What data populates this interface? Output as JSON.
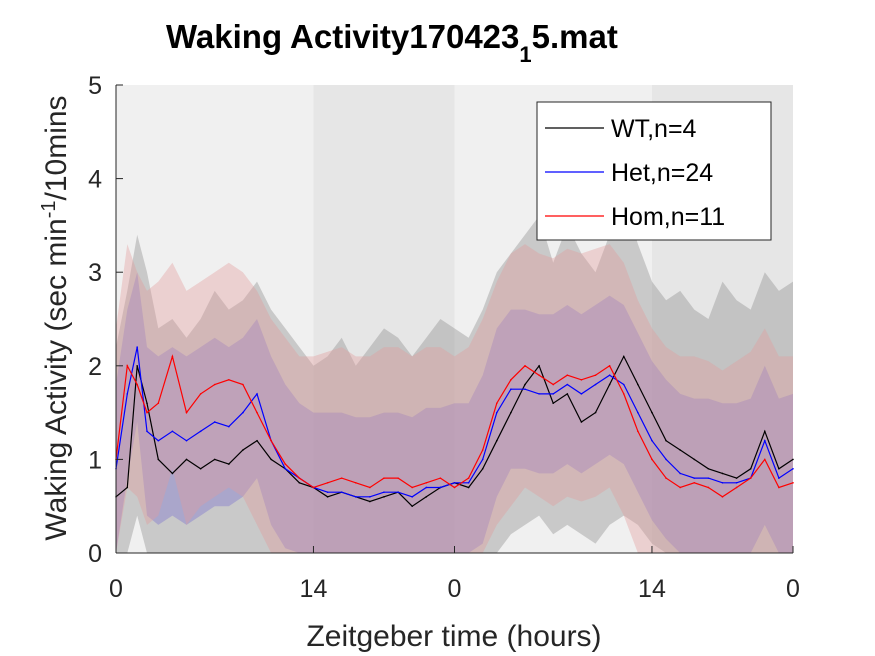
{
  "chart_data": {
    "type": "line",
    "title_main": "Waking Activity170423",
    "title_subscript": "1",
    "title_end": "5.mat",
    "xlabel": "Zeitgeber time (hours)",
    "ylabel_part1": "Waking Activity (sec min",
    "ylabel_sup": "-1",
    "ylabel_part2": "/10mins",
    "x_range": [
      0,
      48
    ],
    "ylim": [
      0,
      5
    ],
    "x_tick_positions": [
      0,
      14,
      24,
      38,
      48
    ],
    "x_tick_labels": [
      "0",
      "14",
      "0",
      "14",
      "0"
    ],
    "y_ticks": [
      0,
      1,
      2,
      3,
      4,
      5
    ],
    "y_tick_labels": [
      "0",
      "1",
      "2",
      "3",
      "4",
      "5"
    ],
    "shading_regions": [
      {
        "from": 0,
        "to": 14,
        "phase": "light",
        "color": "#f0f0f0"
      },
      {
        "from": 14,
        "to": 24,
        "phase": "dark",
        "color": "#e6e6e6"
      },
      {
        "from": 24,
        "to": 38,
        "phase": "light",
        "color": "#f0f0f0"
      },
      {
        "from": 38,
        "to": 48,
        "phase": "dark",
        "color": "#e6e6e6"
      }
    ],
    "legend_position": "top-right",
    "series": [
      {
        "name": "WT,n=4",
        "color": "#000000",
        "band_color": "#9a9a9a",
        "x": [
          0,
          0.8,
          1.5,
          2.2,
          3,
          4,
          5,
          6,
          7,
          8,
          9,
          10,
          11,
          12,
          13,
          14,
          15,
          16,
          17,
          18,
          19,
          20,
          21,
          22,
          23,
          24,
          25,
          26,
          27,
          28,
          29,
          30,
          31,
          32,
          33,
          34,
          35,
          36,
          37,
          38,
          39,
          40,
          41,
          42,
          43,
          44,
          45,
          46,
          47,
          48
        ],
        "values": [
          0.6,
          0.7,
          2.0,
          1.6,
          1.0,
          0.85,
          1.0,
          0.9,
          1.0,
          0.95,
          1.1,
          1.2,
          1.0,
          0.9,
          0.75,
          0.7,
          0.6,
          0.65,
          0.6,
          0.55,
          0.6,
          0.65,
          0.5,
          0.6,
          0.7,
          0.75,
          0.7,
          0.9,
          1.2,
          1.5,
          1.8,
          2.0,
          1.6,
          1.7,
          1.4,
          1.5,
          1.8,
          2.1,
          1.8,
          1.5,
          1.2,
          1.1,
          1.0,
          0.9,
          0.85,
          0.8,
          0.9,
          1.3,
          0.9,
          1.0
        ],
        "band_upper": [
          2.2,
          2.8,
          3.4,
          3.0,
          2.4,
          2.5,
          2.3,
          2.5,
          2.8,
          2.6,
          2.7,
          2.9,
          2.6,
          2.4,
          2.2,
          2.0,
          2.1,
          2.3,
          2.0,
          2.2,
          2.4,
          2.3,
          2.1,
          2.3,
          2.5,
          2.4,
          2.3,
          2.6,
          3.0,
          3.2,
          3.4,
          3.6,
          3.1,
          3.5,
          3.2,
          3.0,
          3.4,
          3.8,
          3.3,
          2.9,
          2.7,
          2.8,
          2.6,
          2.5,
          2.9,
          2.7,
          2.6,
          3.0,
          2.8,
          2.9
        ],
        "band_lower": [
          0,
          0,
          0.4,
          0,
          0,
          0,
          0,
          0,
          0,
          0,
          0,
          0,
          0,
          0,
          0,
          0,
          0,
          0,
          0,
          0,
          0,
          0,
          0,
          0,
          0,
          0,
          0,
          0,
          0,
          0.2,
          0.3,
          0.4,
          0.2,
          0.3,
          0.2,
          0.1,
          0.3,
          0.4,
          0.3,
          0.1,
          0,
          0,
          0,
          0,
          0,
          0,
          0,
          0,
          0,
          0
        ]
      },
      {
        "name": "Het,n=24",
        "color": "#0000ff",
        "band_color": "#7a6fd0",
        "x": [
          0,
          0.8,
          1.5,
          2.2,
          3,
          4,
          5,
          6,
          7,
          8,
          9,
          10,
          11,
          12,
          13,
          14,
          15,
          16,
          17,
          18,
          19,
          20,
          21,
          22,
          23,
          24,
          25,
          26,
          27,
          28,
          29,
          30,
          31,
          32,
          33,
          34,
          35,
          36,
          37,
          38,
          39,
          40,
          41,
          42,
          43,
          44,
          45,
          46,
          47,
          48
        ],
        "values": [
          0.9,
          1.7,
          2.2,
          1.3,
          1.2,
          1.3,
          1.2,
          1.3,
          1.4,
          1.35,
          1.5,
          1.7,
          1.2,
          0.9,
          0.8,
          0.7,
          0.65,
          0.65,
          0.6,
          0.6,
          0.65,
          0.65,
          0.6,
          0.7,
          0.7,
          0.75,
          0.75,
          1.0,
          1.5,
          1.75,
          1.75,
          1.7,
          1.7,
          1.8,
          1.7,
          1.8,
          1.9,
          1.8,
          1.5,
          1.2,
          1.0,
          0.85,
          0.8,
          0.8,
          0.75,
          0.75,
          0.8,
          1.2,
          0.8,
          0.9
        ],
        "band_upper": [
          1.8,
          2.6,
          3.0,
          2.2,
          2.1,
          2.2,
          2.1,
          2.2,
          2.3,
          2.2,
          2.3,
          2.5,
          2.1,
          1.8,
          1.6,
          1.5,
          1.5,
          1.5,
          1.45,
          1.45,
          1.5,
          1.5,
          1.45,
          1.55,
          1.55,
          1.6,
          1.6,
          1.9,
          2.4,
          2.6,
          2.6,
          2.55,
          2.55,
          2.65,
          2.55,
          2.65,
          2.75,
          2.65,
          2.35,
          2.05,
          1.85,
          1.7,
          1.65,
          1.65,
          1.6,
          1.6,
          1.65,
          2.0,
          1.65,
          1.7
        ],
        "band_lower": [
          0,
          0.8,
          1.4,
          0.4,
          0.3,
          0.4,
          0.3,
          0.4,
          0.5,
          0.5,
          0.6,
          0.8,
          0.3,
          0.05,
          0,
          0,
          0,
          0,
          0,
          0,
          0,
          0,
          0,
          0,
          0,
          0,
          0,
          0.1,
          0.6,
          0.9,
          0.9,
          0.85,
          0.85,
          0.95,
          0.85,
          0.95,
          1.05,
          0.95,
          0.65,
          0.35,
          0.15,
          0,
          0,
          0,
          0,
          0,
          0,
          0.3,
          0,
          0
        ]
      },
      {
        "name": "Hom,n=11",
        "color": "#ff0000",
        "band_color": "#e39a9a",
        "x": [
          0,
          0.8,
          1.5,
          2.2,
          3,
          4,
          5,
          6,
          7,
          8,
          9,
          10,
          11,
          12,
          13,
          14,
          15,
          16,
          17,
          18,
          19,
          20,
          21,
          22,
          23,
          24,
          25,
          26,
          27,
          28,
          29,
          30,
          31,
          32,
          33,
          34,
          35,
          36,
          37,
          38,
          39,
          40,
          41,
          42,
          43,
          44,
          45,
          46,
          47,
          48
        ],
        "values": [
          1.0,
          2.0,
          1.8,
          1.5,
          1.6,
          2.1,
          1.5,
          1.7,
          1.8,
          1.85,
          1.8,
          1.5,
          1.2,
          0.95,
          0.8,
          0.7,
          0.75,
          0.8,
          0.75,
          0.7,
          0.8,
          0.8,
          0.7,
          0.75,
          0.8,
          0.7,
          0.8,
          1.1,
          1.6,
          1.85,
          2.0,
          1.9,
          1.8,
          1.9,
          1.85,
          1.9,
          2.0,
          1.7,
          1.3,
          1.0,
          0.8,
          0.7,
          0.75,
          0.7,
          0.6,
          0.7,
          0.8,
          1.0,
          0.7,
          0.75
        ],
        "band_upper": [
          2.4,
          3.3,
          3.0,
          2.8,
          2.9,
          3.1,
          2.8,
          2.9,
          3.0,
          3.1,
          3.0,
          2.8,
          2.5,
          2.3,
          2.1,
          2.1,
          2.15,
          2.2,
          2.1,
          2.1,
          2.2,
          2.2,
          2.1,
          2.2,
          2.2,
          2.1,
          2.2,
          2.5,
          2.9,
          3.2,
          3.3,
          3.2,
          3.15,
          3.25,
          3.2,
          3.25,
          3.3,
          3.1,
          2.7,
          2.4,
          2.2,
          2.1,
          2.1,
          2.05,
          1.95,
          2.05,
          2.15,
          2.4,
          2.1,
          2.1
        ],
        "band_lower": [
          0,
          0.7,
          0.6,
          0.3,
          0.4,
          0.9,
          0.3,
          0.5,
          0.6,
          0.7,
          0.6,
          0.3,
          0,
          0,
          0,
          0,
          0,
          0,
          0,
          0,
          0,
          0,
          0,
          0,
          0,
          0,
          0,
          0,
          0.3,
          0.5,
          0.7,
          0.6,
          0.5,
          0.6,
          0.55,
          0.6,
          0.7,
          0.4,
          0,
          0,
          0,
          0,
          0,
          0,
          0,
          0,
          0,
          0,
          0,
          0
        ]
      }
    ]
  }
}
